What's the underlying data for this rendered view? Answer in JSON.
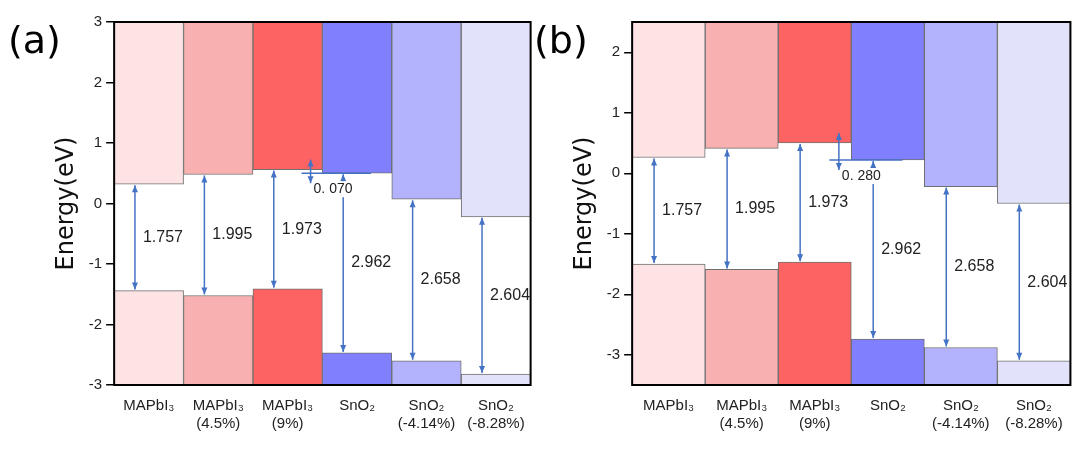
{
  "chart_data": [
    {
      "type": "bar",
      "title": "(a)",
      "ylabel": "Energy(eV)",
      "categories": [
        "MAPbI₃",
        "MAPbI₃ (4.5%)",
        "MAPbI₃ (9%)",
        "SnO₂",
        "SnO₂ (-4.14%)",
        "SnO₂ (-8.28%)"
      ],
      "series": [
        {
          "colors": [
            "#fde3e3",
            "#f9b0b0",
            "#fe6363",
            "#8080fe",
            "#b3b3fd",
            "#e2e2fb"
          ],
          "base": [
            0.32,
            0.48,
            0.56,
            0.5,
            0.07,
            -0.22
          ],
          "values": [
            2.68,
            2.52,
            2.44,
            2.5,
            2.93,
            3.22
          ]
        },
        {
          "colors": [
            "#fde3e3",
            "#f9b0b0",
            "#fe6363",
            "#8080fe",
            "#b3b3fd",
            "#e2e2fb"
          ],
          "base": [
            -3,
            -3,
            -3,
            -3,
            -3,
            -3
          ],
          "values": [
            1.56,
            1.48,
            1.59,
            0.53,
            0.4,
            0.18
          ]
        }
      ],
      "annotations": [
        "1.757",
        "1.995",
        "1.973",
        "2.962",
        "2.658",
        "2.604",
        {
          "text": "0. 070",
          "x": "SnO₂",
          "y": 0.5
        }
      ],
      "ylim": [
        -3,
        3
      ],
      "yticks": [
        -3,
        -2,
        -1,
        0,
        1,
        2,
        3
      ],
      "grid": false,
      "legend": false
    },
    {
      "type": "bar",
      "title": "(b)",
      "ylabel": "Energy(eV)",
      "categories": [
        "MAPbI₃",
        "MAPbI₃ (4.5%)",
        "MAPbI₃ (9%)",
        "SnO₂",
        "SnO₂ (-4.14%)",
        "SnO₂ (-8.28%)"
      ],
      "series": [
        {
          "colors": [
            "#fde3e3",
            "#f9b0b0",
            "#fe6363",
            "#8080fe",
            "#b3b3fd",
            "#e2e2fb"
          ],
          "base": [
            0.26,
            0.41,
            0.5,
            0.22,
            -0.22,
            -0.5
          ],
          "values": [
            2.24,
            2.09,
            2.0,
            2.28,
            2.72,
            3.0
          ]
        },
        {
          "colors": [
            "#fde3e3",
            "#f9b0b0",
            "#fe6363",
            "#8080fe",
            "#b3b3fd",
            "#e2e2fb"
          ],
          "base": [
            -3.5,
            -3.5,
            -3.5,
            -3.5,
            -3.5,
            -3.5
          ],
          "values": [
            2.0,
            1.91,
            2.03,
            0.76,
            0.62,
            0.4
          ]
        }
      ],
      "annotations": [
        "1.757",
        "1.995",
        "1.973",
        "2.962",
        "2.658",
        "2.604",
        {
          "text": "0. 280",
          "x": "SnO₂",
          "y": 0.22
        }
      ],
      "ylim": [
        -3.5,
        2.5
      ],
      "yticks": [
        -3,
        -2,
        -1,
        0,
        1,
        2
      ],
      "grid": false,
      "legend": false
    }
  ]
}
